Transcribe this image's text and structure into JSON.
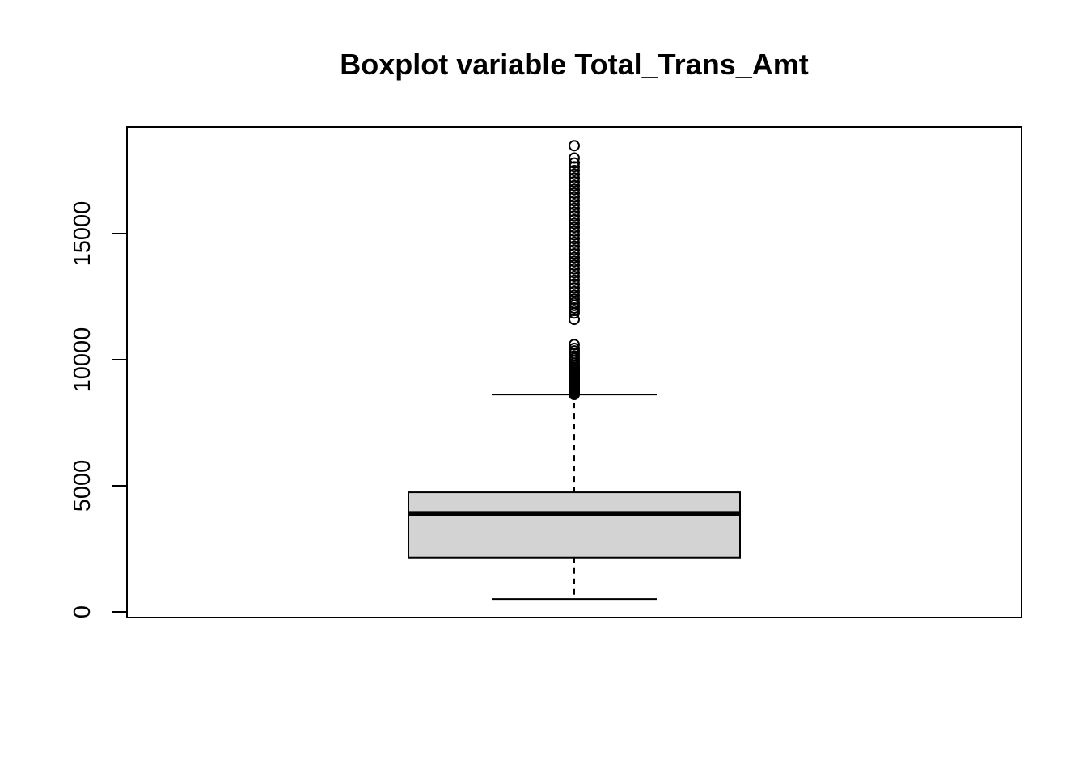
{
  "chart_data": {
    "type": "boxplot",
    "title": "Boxplot variable Total_Trans_Amt",
    "xlabel": "",
    "ylabel": "",
    "ylim": [
      -200,
      19200
    ],
    "y_ticks": [
      0,
      5000,
      10000,
      15000
    ],
    "y_tick_labels": [
      "0",
      "5000",
      "10000",
      "15000"
    ],
    "grid": false,
    "legend": "none",
    "box": {
      "lower_whisker": 510,
      "q1": 2156,
      "median": 3899,
      "q3": 4741,
      "upper_whisker": 8618
    },
    "outliers": [
      8620,
      8640,
      8660,
      8680,
      8700,
      8720,
      8750,
      8780,
      8810,
      8840,
      8870,
      8900,
      8940,
      8980,
      9020,
      9060,
      9100,
      9150,
      9200,
      9250,
      9300,
      9350,
      9400,
      9450,
      9500,
      9560,
      9620,
      9690,
      9760,
      9850,
      9950,
      10050,
      10150,
      10250,
      10350,
      10450,
      10600,
      11600,
      11850,
      11950,
      12050,
      12150,
      12250,
      12400,
      12550,
      12700,
      12850,
      13000,
      13150,
      13300,
      13450,
      13600,
      13750,
      13900,
      14050,
      14200,
      14350,
      14500,
      14650,
      14800,
      14950,
      15100,
      15250,
      15400,
      15550,
      15700,
      15850,
      16000,
      16150,
      16300,
      16450,
      16600,
      16750,
      16900,
      17050,
      17200,
      17350,
      17500,
      17650,
      17800,
      17995,
      18484
    ],
    "colors": {
      "box_fill": "#d3d3d3",
      "stroke": "#000000",
      "background": "#ffffff"
    }
  }
}
